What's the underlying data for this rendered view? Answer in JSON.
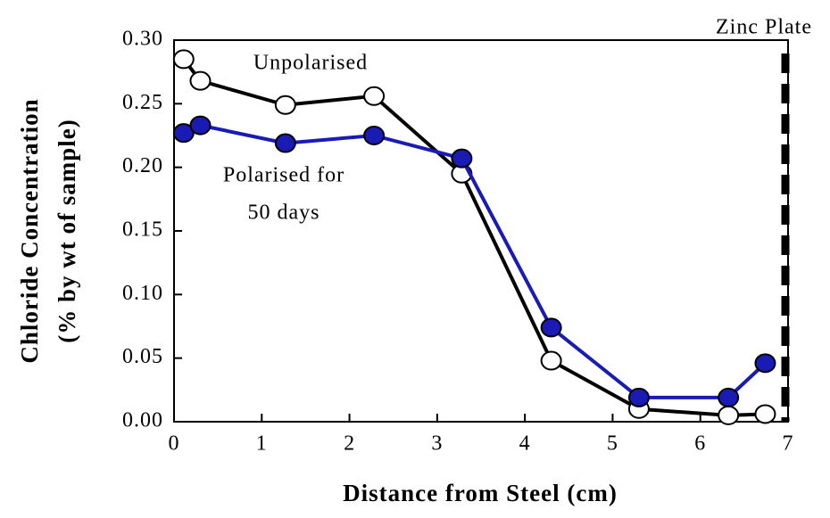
{
  "chart_data": {
    "type": "line",
    "x_label": "Distance from Steel (cm)",
    "y_label": [
      "Chloride Concentration",
      "(% by wt of sample)"
    ],
    "annotations": [
      "Zinc Plate",
      "Unpolarised",
      "Polarised for",
      "50 days"
    ],
    "series": [
      {
        "name": "Unpolarised",
        "color": "#000000",
        "marker_fill": "#ffffff",
        "x": [
          0.11,
          0.3,
          1.27,
          2.28,
          3.28,
          4.3,
          5.3,
          6.32,
          6.74
        ],
        "values": [
          0.285,
          0.268,
          0.249,
          0.256,
          0.195,
          0.048,
          0.01,
          0.005,
          0.006
        ]
      },
      {
        "name": "Polarised for 50 days",
        "color": "#1a1ab4",
        "marker_fill": "#1a1ab4",
        "x": [
          0.11,
          0.3,
          1.27,
          2.28,
          3.28,
          4.3,
          5.3,
          6.32,
          6.74
        ],
        "values": [
          0.227,
          0.233,
          0.219,
          0.225,
          0.207,
          0.074,
          0.019,
          0.019,
          0.046
        ]
      }
    ],
    "zinc_plate_x": 7,
    "xlim": [
      0,
      7
    ],
    "xticks": [
      0,
      1,
      2,
      3,
      4,
      5,
      6,
      7
    ],
    "ylim": [
      0,
      0.3
    ],
    "yticks": [
      {
        "value": 0,
        "label": "0.00"
      },
      {
        "value": 0.05,
        "label": "0.05"
      },
      {
        "value": 0.1,
        "label": "0.10"
      },
      {
        "value": 0.15,
        "label": "0.15"
      },
      {
        "value": 0.2,
        "label": "0.20"
      },
      {
        "value": 0.25,
        "label": "0.25"
      },
      {
        "value": 0.3,
        "label": "0.30"
      }
    ]
  }
}
